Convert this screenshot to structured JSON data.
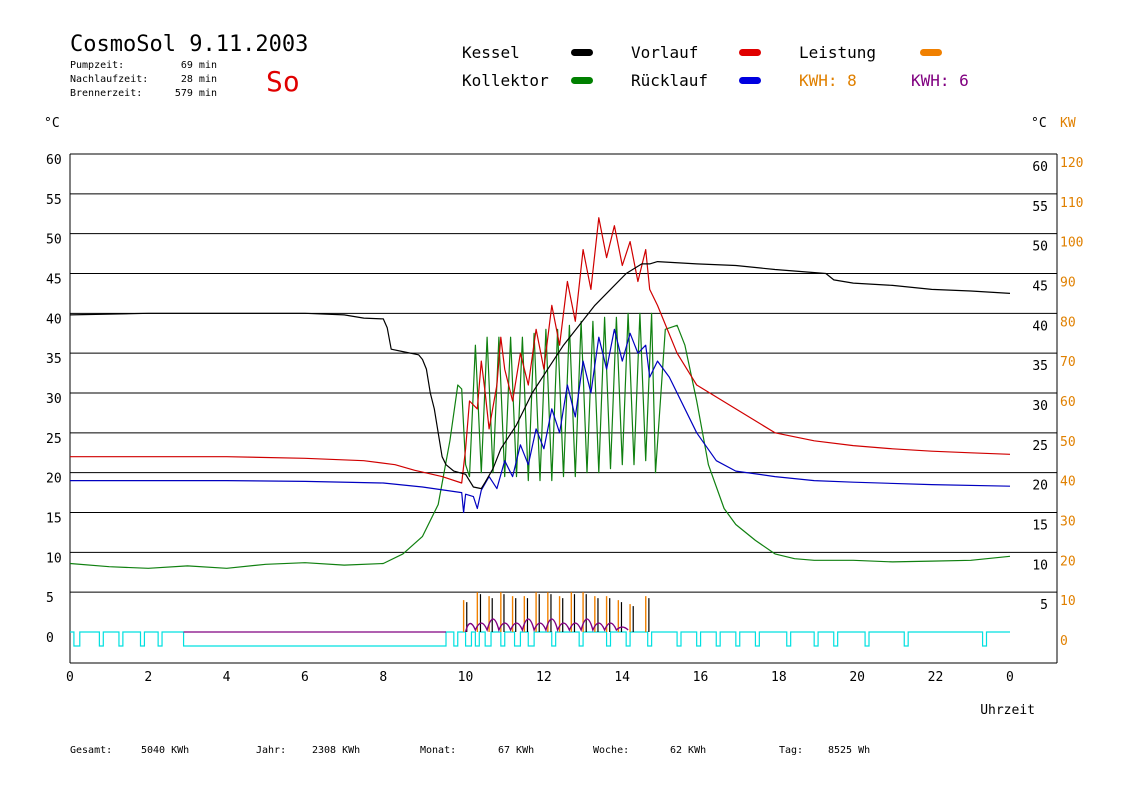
{
  "header": {
    "title": "CosmoSol 9.11.2003",
    "day": "So",
    "stats": [
      {
        "label": "Pumpzeit:",
        "value": "69 min"
      },
      {
        "label": "Nachlaufzeit:",
        "value": "28 min"
      },
      {
        "label": "Brennerzeit:",
        "value": "579 min"
      }
    ]
  },
  "legend": {
    "items": [
      {
        "label": "Kessel",
        "color": "#000000"
      },
      {
        "label": "Vorlauf",
        "color": "#e00000"
      },
      {
        "label": "Leistung",
        "color": "#f08000"
      },
      {
        "label": "Kollektor",
        "color": "#008000"
      },
      {
        "label": "Rücklauf",
        "color": "#0000e0"
      }
    ],
    "kwh": [
      {
        "label": "KWH: 8",
        "color": "#e08000"
      },
      {
        "label": "KWH: 6",
        "color": "#800080"
      }
    ]
  },
  "footer": {
    "totals": [
      {
        "label": "Gesamt:",
        "value": "5040 KWh"
      },
      {
        "label": "Jahr:",
        "value": "2308 KWh"
      },
      {
        "label": "Monat:",
        "value": "67 KWh"
      },
      {
        "label": "Woche:",
        "value": "62 KWh"
      },
      {
        "label": "Tag:",
        "value": "8525 Wh"
      }
    ]
  },
  "chart_data": {
    "type": "line",
    "x_unit": "hour",
    "xlabel": "Uhrzeit",
    "ylabel_left": "°C",
    "ylabel_right_temp": "°C",
    "ylabel_right_power": "KW",
    "x_ticks": [
      "0",
      "2",
      "4",
      "6",
      "8",
      "10",
      "12",
      "14",
      "16",
      "18",
      "20",
      "22",
      "0"
    ],
    "y_ticks_left": [
      "0",
      "5",
      "10",
      "15",
      "20",
      "25",
      "30",
      "35",
      "40",
      "45",
      "50",
      "55",
      "60"
    ],
    "y_ticks_right": [
      "5",
      "10",
      "15",
      "20",
      "25",
      "30",
      "35",
      "40",
      "45",
      "50",
      "55",
      "60"
    ],
    "y_ticks_power": [
      "0",
      "10",
      "20",
      "30",
      "40",
      "50",
      "60",
      "70",
      "80",
      "90",
      "100",
      "110",
      "120"
    ],
    "xlim": [
      0,
      24
    ],
    "ylim": [
      0,
      60
    ],
    "power_lim": [
      0,
      120
    ],
    "grid": "horizontal",
    "colors": {
      "kessel": "#000000",
      "vorlauf": "#d00000",
      "ruecklauf": "#0000c0",
      "kollektor": "#108010",
      "leistung": "#f08000",
      "pump": "#00e0e0",
      "kwh2": "#800080"
    },
    "series": [
      {
        "key": "kessel",
        "name": "Kessel",
        "points": [
          [
            0,
            39.8
          ],
          [
            2,
            40
          ],
          [
            4,
            40
          ],
          [
            6,
            40
          ],
          [
            7,
            39.8
          ],
          [
            7.5,
            39.4
          ],
          [
            8.0,
            39.3
          ],
          [
            8.1,
            38.2
          ],
          [
            8.2,
            35.5
          ],
          [
            8.5,
            35.2
          ],
          [
            8.9,
            34.8
          ],
          [
            9.0,
            34.2
          ],
          [
            9.1,
            33
          ],
          [
            9.2,
            30
          ],
          [
            9.3,
            28
          ],
          [
            9.4,
            25
          ],
          [
            9.5,
            22
          ],
          [
            9.6,
            21
          ],
          [
            9.8,
            20.2
          ],
          [
            10.1,
            19.8
          ],
          [
            10.3,
            18.2
          ],
          [
            10.5,
            18
          ],
          [
            10.6,
            18.8
          ],
          [
            10.8,
            20.5
          ],
          [
            11,
            23
          ],
          [
            11.4,
            26
          ],
          [
            11.8,
            30
          ],
          [
            12.2,
            33
          ],
          [
            12.6,
            36
          ],
          [
            13.0,
            38.5
          ],
          [
            13.4,
            41
          ],
          [
            13.8,
            43
          ],
          [
            14.2,
            45
          ],
          [
            14.6,
            46.2
          ],
          [
            14.8,
            46.2
          ],
          [
            15,
            46.5
          ],
          [
            16,
            46.2
          ],
          [
            17,
            46
          ],
          [
            18,
            45.5
          ],
          [
            19.3,
            45
          ],
          [
            19.5,
            44.2
          ],
          [
            20,
            43.8
          ],
          [
            21,
            43.5
          ],
          [
            22,
            43
          ],
          [
            23,
            42.8
          ],
          [
            24,
            42.5
          ]
        ]
      },
      {
        "key": "vorlauf",
        "name": "Vorlauf",
        "points": [
          [
            0,
            22
          ],
          [
            2,
            22
          ],
          [
            4,
            22
          ],
          [
            6,
            21.8
          ],
          [
            7.5,
            21.5
          ],
          [
            8.3,
            21
          ],
          [
            8.8,
            20.3
          ],
          [
            9.5,
            19.5
          ],
          [
            10.0,
            18.7
          ],
          [
            10.1,
            23
          ],
          [
            10.2,
            29
          ],
          [
            10.4,
            28
          ],
          [
            10.5,
            34
          ],
          [
            10.6,
            30
          ],
          [
            10.7,
            25.5
          ],
          [
            10.9,
            31
          ],
          [
            11,
            37
          ],
          [
            11.1,
            33
          ],
          [
            11.3,
            29
          ],
          [
            11.5,
            35
          ],
          [
            11.7,
            31
          ],
          [
            11.9,
            38
          ],
          [
            12.1,
            33
          ],
          [
            12.3,
            41
          ],
          [
            12.5,
            36
          ],
          [
            12.7,
            44
          ],
          [
            12.9,
            39
          ],
          [
            13.1,
            48
          ],
          [
            13.3,
            43
          ],
          [
            13.5,
            52
          ],
          [
            13.7,
            47
          ],
          [
            13.9,
            51
          ],
          [
            14.1,
            46
          ],
          [
            14.3,
            49
          ],
          [
            14.5,
            44
          ],
          [
            14.7,
            48
          ],
          [
            14.8,
            43
          ],
          [
            15,
            41
          ],
          [
            15.5,
            35
          ],
          [
            16,
            31
          ],
          [
            17,
            28
          ],
          [
            18,
            25
          ],
          [
            19,
            24
          ],
          [
            20,
            23.4
          ],
          [
            21,
            23
          ],
          [
            22,
            22.7
          ],
          [
            23,
            22.5
          ],
          [
            24,
            22.3
          ]
        ]
      },
      {
        "key": "ruecklauf",
        "name": "Rücklauf",
        "points": [
          [
            0,
            19
          ],
          [
            2,
            19
          ],
          [
            4,
            19
          ],
          [
            6,
            18.9
          ],
          [
            8,
            18.7
          ],
          [
            9,
            18.2
          ],
          [
            10,
            17.5
          ],
          [
            10.05,
            15
          ],
          [
            10.1,
            17.3
          ],
          [
            10.3,
            17
          ],
          [
            10.4,
            15.5
          ],
          [
            10.5,
            17.8
          ],
          [
            10.7,
            19.5
          ],
          [
            10.9,
            18
          ],
          [
            11.1,
            21.5
          ],
          [
            11.3,
            19.5
          ],
          [
            11.5,
            23.5
          ],
          [
            11.7,
            21
          ],
          [
            11.9,
            25.5
          ],
          [
            12.1,
            23
          ],
          [
            12.3,
            28
          ],
          [
            12.5,
            25
          ],
          [
            12.7,
            31
          ],
          [
            12.9,
            27
          ],
          [
            13.1,
            34
          ],
          [
            13.3,
            30
          ],
          [
            13.5,
            37
          ],
          [
            13.7,
            33
          ],
          [
            13.9,
            38
          ],
          [
            14.1,
            34
          ],
          [
            14.3,
            37.5
          ],
          [
            14.5,
            35
          ],
          [
            14.7,
            36
          ],
          [
            14.8,
            32
          ],
          [
            15,
            34
          ],
          [
            15.3,
            32
          ],
          [
            16,
            25
          ],
          [
            16.5,
            21.5
          ],
          [
            17,
            20.2
          ],
          [
            18,
            19.5
          ],
          [
            19,
            19
          ],
          [
            20,
            18.8
          ],
          [
            22,
            18.5
          ],
          [
            24,
            18.3
          ]
        ]
      },
      {
        "key": "kollektor",
        "name": "Kollektor",
        "points": [
          [
            0,
            8.6
          ],
          [
            1,
            8.2
          ],
          [
            2,
            8.0
          ],
          [
            3,
            8.3
          ],
          [
            4,
            8.0
          ],
          [
            5,
            8.5
          ],
          [
            6,
            8.7
          ],
          [
            7,
            8.4
          ],
          [
            8,
            8.6
          ],
          [
            8.5,
            9.8
          ],
          [
            9,
            12
          ],
          [
            9.4,
            16
          ],
          [
            9.7,
            24
          ],
          [
            9.9,
            31
          ],
          [
            10.0,
            30.5
          ],
          [
            10.1,
            21
          ],
          [
            10.2,
            19.5
          ],
          [
            10.35,
            36
          ],
          [
            10.5,
            20
          ],
          [
            10.65,
            37
          ],
          [
            10.8,
            20
          ],
          [
            10.95,
            37
          ],
          [
            11.1,
            19.5
          ],
          [
            11.25,
            37
          ],
          [
            11.4,
            19.5
          ],
          [
            11.55,
            37
          ],
          [
            11.7,
            19
          ],
          [
            11.85,
            37.5
          ],
          [
            12.0,
            19
          ],
          [
            12.15,
            38
          ],
          [
            12.3,
            19
          ],
          [
            12.45,
            38
          ],
          [
            12.6,
            19.5
          ],
          [
            12.75,
            38.5
          ],
          [
            12.9,
            19.5
          ],
          [
            13.05,
            39
          ],
          [
            13.2,
            20
          ],
          [
            13.35,
            39
          ],
          [
            13.5,
            20
          ],
          [
            13.65,
            39.5
          ],
          [
            13.8,
            20.5
          ],
          [
            13.95,
            39.5
          ],
          [
            14.1,
            21
          ],
          [
            14.25,
            40
          ],
          [
            14.4,
            21
          ],
          [
            14.55,
            40
          ],
          [
            14.7,
            21.5
          ],
          [
            14.85,
            40
          ],
          [
            14.95,
            20
          ],
          [
            15.2,
            38
          ],
          [
            15.5,
            38.5
          ],
          [
            15.7,
            36
          ],
          [
            16,
            29
          ],
          [
            16.3,
            21
          ],
          [
            16.7,
            15.5
          ],
          [
            17,
            13.5
          ],
          [
            17.5,
            11.5
          ],
          [
            18,
            9.8
          ],
          [
            18.5,
            9.2
          ],
          [
            19,
            9
          ],
          [
            20,
            9
          ],
          [
            21,
            8.8
          ],
          [
            22,
            8.9
          ],
          [
            23,
            9
          ],
          [
            24,
            9.5
          ]
        ]
      }
    ],
    "leistung_peaks_kw": [
      {
        "x": 10.05,
        "v": 8
      },
      {
        "x": 10.4,
        "v": 10
      },
      {
        "x": 10.7,
        "v": 9
      },
      {
        "x": 11.0,
        "v": 10
      },
      {
        "x": 11.3,
        "v": 9
      },
      {
        "x": 11.6,
        "v": 9
      },
      {
        "x": 11.9,
        "v": 10
      },
      {
        "x": 12.2,
        "v": 10
      },
      {
        "x": 12.5,
        "v": 9
      },
      {
        "x": 12.8,
        "v": 10
      },
      {
        "x": 13.1,
        "v": 10
      },
      {
        "x": 13.4,
        "v": 9
      },
      {
        "x": 13.7,
        "v": 9
      },
      {
        "x": 14.0,
        "v": 8
      },
      {
        "x": 14.3,
        "v": 7
      },
      {
        "x": 14.7,
        "v": 9
      }
    ],
    "kwh2_peaks_kw": [
      {
        "x": 10.2,
        "v": 2
      },
      {
        "x": 10.5,
        "v": 2
      },
      {
        "x": 10.8,
        "v": 3
      },
      {
        "x": 11.1,
        "v": 2
      },
      {
        "x": 11.4,
        "v": 2
      },
      {
        "x": 11.7,
        "v": 3
      },
      {
        "x": 12.0,
        "v": 2
      },
      {
        "x": 12.3,
        "v": 3
      },
      {
        "x": 12.6,
        "v": 2
      },
      {
        "x": 12.9,
        "v": 2
      },
      {
        "x": 13.2,
        "v": 3
      },
      {
        "x": 13.5,
        "v": 2
      },
      {
        "x": 13.8,
        "v": 2
      },
      {
        "x": 14.1,
        "v": 1
      }
    ],
    "pump_on_intervals": [
      [
        0.1,
        0.25
      ],
      [
        0.75,
        0.85
      ],
      [
        1.25,
        1.35
      ],
      [
        1.8,
        1.9
      ],
      [
        2.25,
        2.35
      ],
      [
        2.9,
        9.6
      ],
      [
        9.8,
        9.9
      ],
      [
        10.1,
        10.25
      ],
      [
        10.35,
        10.45
      ],
      [
        10.6,
        10.75
      ],
      [
        11.0,
        11.1
      ],
      [
        11.35,
        11.5
      ],
      [
        11.7,
        11.85
      ],
      [
        12.3,
        12.4
      ],
      [
        13.0,
        13.1
      ],
      [
        13.7,
        13.8
      ],
      [
        14.2,
        14.3
      ],
      [
        14.75,
        14.85
      ],
      [
        15.5,
        15.6
      ],
      [
        16.0,
        16.1
      ],
      [
        16.5,
        16.6
      ],
      [
        17.0,
        17.1
      ],
      [
        17.5,
        17.6
      ],
      [
        18.3,
        18.4
      ],
      [
        19.0,
        19.1
      ],
      [
        19.5,
        19.6
      ],
      [
        20.3,
        20.4
      ],
      [
        21.3,
        21.4
      ],
      [
        23.3,
        23.4
      ]
    ]
  }
}
